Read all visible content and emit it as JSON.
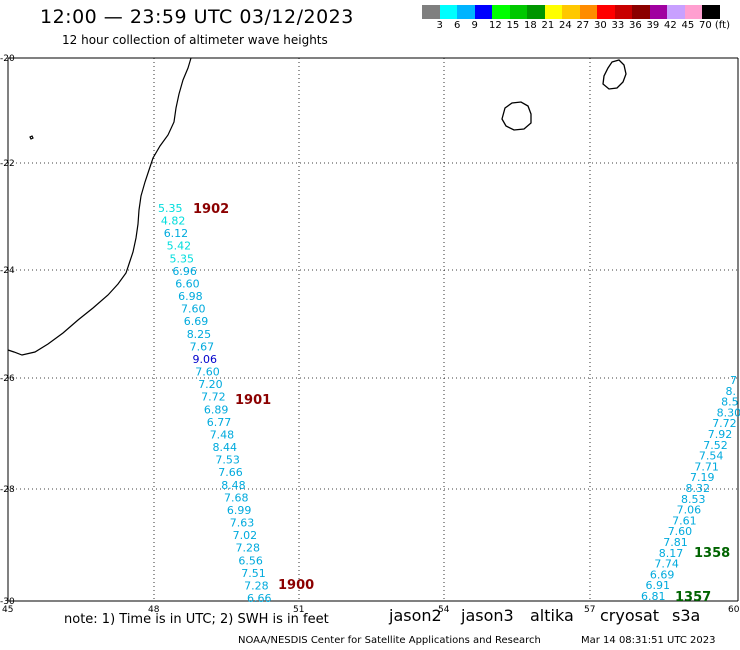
{
  "header": {
    "title": "12:00 — 23:59 UTC 03/12/2023",
    "subtitle": "12 hour collection of altimeter wave heights"
  },
  "color_scale": {
    "colors": [
      "#7f7f7f",
      "#00ffff",
      "#00b4ff",
      "#0000ff",
      "#00ff00",
      "#00c800",
      "#009600",
      "#ffff00",
      "#ffc800",
      "#ff8c00",
      "#ff0000",
      "#c80000",
      "#8b0000",
      "#a000a0",
      "#c8a0ff",
      "#ff9fd0",
      "#000000"
    ],
    "labels": [
      "3",
      "6",
      "9",
      "12",
      "15",
      "18",
      "21",
      "24",
      "27",
      "30",
      "33",
      "36",
      "39",
      "42",
      "45",
      "70 (ft)"
    ]
  },
  "axes": {
    "lon_ticks": [
      "45",
      "48",
      "51",
      "54",
      "57",
      "60"
    ],
    "lat_ticks": [
      "-20",
      "-22",
      "-24",
      "-26",
      "-28",
      "-30"
    ]
  },
  "tracks": {
    "west": {
      "labels": [
        "1902",
        "1901",
        "1900"
      ],
      "label_color": "#8b0000",
      "swh_values": [
        "5.35",
        "4.82",
        "6.12",
        "5.42",
        "5.35",
        "6.96",
        "6.60",
        "6.98",
        "7.60",
        "6.69",
        "8.25",
        "7.67",
        "9.06",
        "7.60",
        "7.20",
        "7.72",
        "6.89",
        "6.77",
        "7.48",
        "8.44",
        "7.53",
        "7.66",
        "8.48",
        "7.68",
        "6.99",
        "7.63",
        "7.02",
        "7.28",
        "6.56",
        "7.51",
        "7.28",
        "6.66"
      ]
    },
    "east": {
      "labels": [
        "1358",
        "1357"
      ],
      "label_color": "#006400",
      "swh_values": [
        "6.81",
        "6.91",
        "6.69",
        "7.74",
        "8.17",
        "7.81",
        "7.60",
        "7.61",
        "7.06",
        "8.53",
        "8.32",
        "7.19",
        "7.71",
        "7.54",
        "7.52",
        "7.92",
        "7.72",
        "8.30",
        "8.5",
        "8.",
        "7"
      ]
    }
  },
  "footer": {
    "note": "note:  1) Time is in UTC;  2) SWH is in feet",
    "satellites": [
      {
        "name": "jason2",
        "color": "#0000cc"
      },
      {
        "name": "jason3",
        "color": "#008800"
      },
      {
        "name": "altika",
        "color": "#ff8c00"
      },
      {
        "name": "cryosat",
        "color": "#cc0000"
      },
      {
        "name": "s3a",
        "color": "#990000"
      }
    ],
    "credit": "NOAA/NESDIS Center for Satellite Applications and Research",
    "timestamp": "Mar 14 08:31:51 UTC 2023"
  }
}
